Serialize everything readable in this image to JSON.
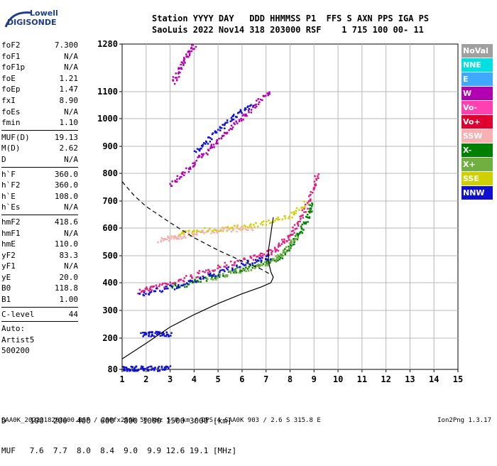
{
  "logo": {
    "line1": "Lowell",
    "line2": "DIGISONDE"
  },
  "header": {
    "line1": "Station YYYY DAY   DDD HHMMSS P1  FFS S AXN PPS IGA PS",
    "line2": "SaoLuis 2022 Nov14 318 203000 RSF    1 715 100 00- 11"
  },
  "params": [
    {
      "name": "foF2",
      "value": "7.300"
    },
    {
      "name": "foF1",
      "value": "N/A"
    },
    {
      "name": "foF1p",
      "value": "N/A"
    },
    {
      "name": "foE",
      "value": "1.21"
    },
    {
      "name": "foEp",
      "value": "1.47"
    },
    {
      "name": "fxI",
      "value": "8.90"
    },
    {
      "name": "foEs",
      "value": "N/A"
    },
    {
      "name": "fmin",
      "value": "1.10"
    },
    {
      "divider": true
    },
    {
      "name": "MUF(D)",
      "value": "19.13"
    },
    {
      "name": "M(D)",
      "value": "2.62"
    },
    {
      "name": "D",
      "value": "N/A"
    },
    {
      "divider": true
    },
    {
      "name": "h`F",
      "value": "360.0"
    },
    {
      "name": "h`F2",
      "value": "360.0"
    },
    {
      "name": "h`E",
      "value": "108.0"
    },
    {
      "name": "h`Es",
      "value": "N/A"
    },
    {
      "divider": true
    },
    {
      "name": "hmF2",
      "value": "418.6"
    },
    {
      "name": "hmF1",
      "value": "N/A"
    },
    {
      "name": "hmE",
      "value": "110.0"
    },
    {
      "name": "yF2",
      "value": "83.3"
    },
    {
      "name": "yF1",
      "value": "N/A"
    },
    {
      "name": "yE",
      "value": "20.0"
    },
    {
      "name": "B0",
      "value": "118.8"
    },
    {
      "name": "B1",
      "value": "1.00"
    },
    {
      "divider": true
    },
    {
      "name": "C-level",
      "value": "44"
    },
    {
      "divider": true
    },
    {
      "name": "Auto:",
      "value": ""
    },
    {
      "name": "Artist5",
      "value": ""
    },
    {
      "name": "500200",
      "value": ""
    }
  ],
  "legend": [
    {
      "label": "NoVal",
      "color": "#a0a0a0"
    },
    {
      "label": "NNE",
      "color": "#00e0e0"
    },
    {
      "label": "E",
      "color": "#40a8ff"
    },
    {
      "label": "W",
      "color": "#b000b0"
    },
    {
      "label": "Vo-",
      "color": "#ff40b0"
    },
    {
      "label": "Vo+",
      "color": "#e00030"
    },
    {
      "label": "SSW",
      "color": "#f8b0b0"
    },
    {
      "label": "X-",
      "color": "#008000"
    },
    {
      "label": "X+",
      "color": "#70b040"
    },
    {
      "label": "SSE",
      "color": "#d0d000"
    },
    {
      "label": "NNW",
      "color": "#1010d0"
    }
  ],
  "muf_table": {
    "line1": "D     100  200  400  600  800 1000 1500 3000 [km]",
    "line2": "MUF   7.6  7.7  8.0  8.4  9.0  9.9 12.6 19.1 [MHz]"
  },
  "footer": {
    "left": "SAA0K_2022318203000.RSF / 280fx256h 50 kHz 5.0 km / DPS-4 SAA0K 903 / 2.6 S 315.8 E",
    "right": "Ion2Png 1.3.17"
  },
  "chart_data": {
    "type": "scatter",
    "xlim": [
      1,
      15
    ],
    "ylim": [
      80,
      1280
    ],
    "x_ticks": [
      1,
      2,
      3,
      4,
      5,
      6,
      7,
      8,
      9,
      10,
      11,
      12,
      13,
      14,
      15
    ],
    "y_ticks": [
      80,
      200,
      300,
      400,
      500,
      600,
      700,
      800,
      900,
      1000,
      1100,
      1280
    ],
    "grid": true,
    "legend_position": "right",
    "echo_traces": [
      {
        "name": "F2 O-trace",
        "color": "#e02080",
        "points": [
          [
            1.7,
            372
          ],
          [
            2.2,
            385
          ],
          [
            3,
            400
          ],
          [
            4,
            430
          ],
          [
            5,
            462
          ],
          [
            6,
            488
          ],
          [
            6.8,
            505
          ],
          [
            7.3,
            520
          ],
          [
            7.8,
            560
          ],
          [
            8.2,
            610
          ],
          [
            8.6,
            670
          ],
          [
            8.9,
            740
          ],
          [
            9.1,
            800
          ]
        ]
      },
      {
        "name": "F2 X-trace",
        "color": "#008000",
        "points": [
          [
            3,
            385
          ],
          [
            4,
            405
          ],
          [
            5,
            430
          ],
          [
            6,
            455
          ],
          [
            7,
            478
          ],
          [
            7.5,
            492
          ],
          [
            8,
            540
          ],
          [
            8.4,
            590
          ],
          [
            8.7,
            640
          ],
          [
            8.9,
            700
          ]
        ]
      },
      {
        "name": "F2 X-trace 2",
        "color": "#70b040",
        "points": [
          [
            4.5,
            410
          ],
          [
            5.5,
            438
          ],
          [
            6.5,
            462
          ],
          [
            7.2,
            480
          ],
          [
            7.8,
            520
          ],
          [
            8.3,
            580
          ]
        ]
      },
      {
        "name": "F2 N/S trace",
        "color": "#1010d0",
        "points": [
          [
            1.7,
            360
          ],
          [
            2.5,
            375
          ],
          [
            3.5,
            395
          ],
          [
            4.5,
            425
          ],
          [
            5.5,
            455
          ],
          [
            6.5,
            485
          ],
          [
            7.2,
            500
          ]
        ]
      },
      {
        "name": "2nd hop",
        "color": "#b000b0",
        "points": [
          [
            3.0,
            760
          ],
          [
            3.6,
            810
          ],
          [
            4.2,
            860
          ],
          [
            4.8,
            910
          ],
          [
            5.4,
            960
          ],
          [
            6.0,
            1010
          ],
          [
            6.6,
            1060
          ],
          [
            7.2,
            1110
          ]
        ]
      },
      {
        "name": "2nd hop X",
        "color": "#1010d0",
        "points": [
          [
            4,
            880
          ],
          [
            4.6,
            930
          ],
          [
            5.2,
            980
          ],
          [
            5.8,
            1020
          ],
          [
            6.4,
            1060
          ]
        ]
      },
      {
        "name": "3rd hop",
        "color": "#b000b0",
        "points": [
          [
            3.1,
            1140
          ],
          [
            3.4,
            1190
          ],
          [
            3.7,
            1240
          ],
          [
            4.0,
            1280
          ]
        ]
      },
      {
        "name": "Spread",
        "color": "#d0d000",
        "points": [
          [
            3.2,
            580
          ],
          [
            4,
            590
          ],
          [
            5,
            600
          ],
          [
            6,
            605
          ],
          [
            7,
            625
          ],
          [
            8,
            650
          ],
          [
            8.7,
            700
          ]
        ]
      },
      {
        "name": "Spread SSW",
        "color": "#f8b0b0",
        "points": [
          [
            2.5,
            560
          ],
          [
            3,
            565
          ],
          [
            3.5,
            575
          ],
          [
            4.5,
            590
          ],
          [
            5.5,
            598
          ],
          [
            6.5,
            602
          ]
        ]
      },
      {
        "name": "E-layer",
        "color": "#1010d0",
        "points": [
          [
            1,
            85
          ],
          [
            1.3,
            85
          ],
          [
            1.6,
            86
          ],
          [
            2,
            86
          ],
          [
            2.5,
            86
          ],
          [
            3,
            87
          ]
        ]
      },
      {
        "name": "low echo",
        "color": "#1010d0",
        "points": [
          [
            1.8,
            215
          ],
          [
            2.2,
            218
          ],
          [
            2.6,
            218
          ],
          [
            3,
            215
          ]
        ]
      }
    ],
    "profile_solid": [
      [
        1,
        120
      ],
      [
        1.5,
        150
      ],
      [
        2,
        180
      ],
      [
        3,
        240
      ],
      [
        4,
        285
      ],
      [
        5,
        325
      ],
      [
        6,
        360
      ],
      [
        6.8,
        385
      ],
      [
        7.2,
        400
      ],
      [
        7.3,
        420
      ],
      [
        7.2,
        440
      ],
      [
        7.1,
        480
      ],
      [
        7.1,
        520
      ],
      [
        7.2,
        580
      ],
      [
        7.3,
        640
      ]
    ],
    "profile_dashed": [
      [
        1,
        770
      ],
      [
        1.5,
        720
      ],
      [
        2,
        680
      ],
      [
        3,
        620
      ],
      [
        4,
        565
      ],
      [
        5,
        520
      ],
      [
        6,
        480
      ],
      [
        6.8,
        450
      ],
      [
        7.2,
        430
      ]
    ]
  }
}
